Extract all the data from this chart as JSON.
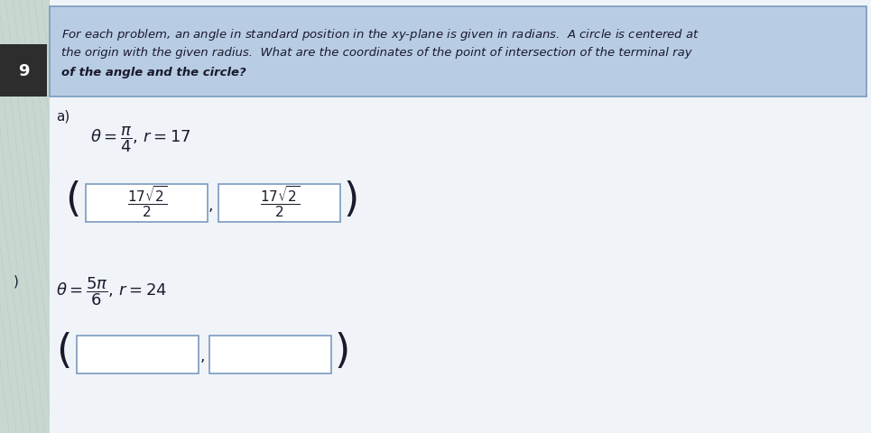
{
  "bg_color": "#c8d8d0",
  "header_bg": "#b8cce4",
  "header_border": "#7a9abf",
  "tab_bg": "#2d2d2d",
  "tab_text": "#ffffff",
  "problem_number": "9",
  "part_a_label": "a)",
  "part_b_label": ")",
  "text_color": "#1a1a2e",
  "header_font_size": 9.5,
  "box_fill": "#f0f4f8",
  "box_border": "#7a9abf",
  "content_bg": "#e8eef4"
}
